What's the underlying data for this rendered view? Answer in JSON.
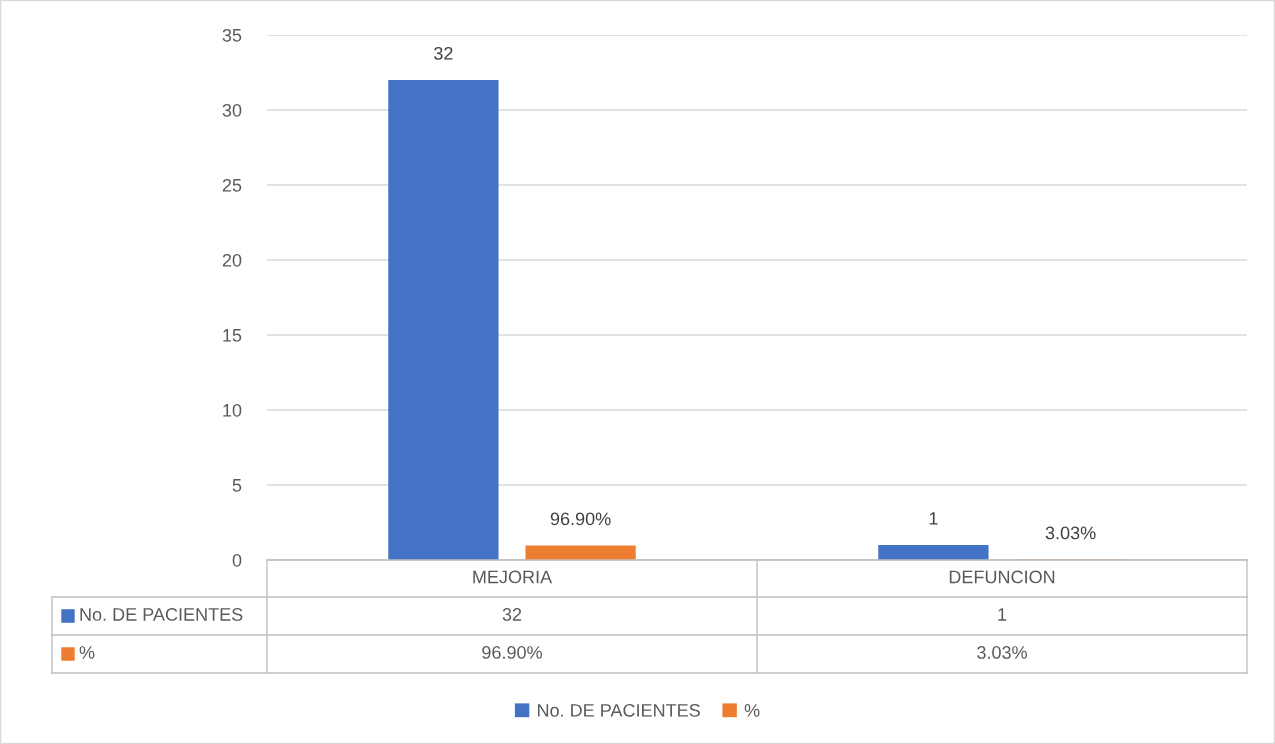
{
  "chart_data": {
    "type": "bar",
    "categories": [
      "MEJORIA",
      "DEFUNCION"
    ],
    "series": [
      {
        "name": "No. DE PACIENTES",
        "color": "#4472c4",
        "values": [
          32,
          1
        ],
        "value_labels": [
          "32",
          "1"
        ]
      },
      {
        "name": "%",
        "color": "#ed7d31",
        "values": [
          0.969,
          0.0303
        ],
        "value_labels": [
          "96.90%",
          "3.03%"
        ]
      }
    ],
    "ylim": [
      0,
      35
    ],
    "yticks": [
      0,
      5,
      10,
      15,
      20,
      25,
      30,
      35
    ],
    "grid": "y",
    "legend": "bottom"
  }
}
